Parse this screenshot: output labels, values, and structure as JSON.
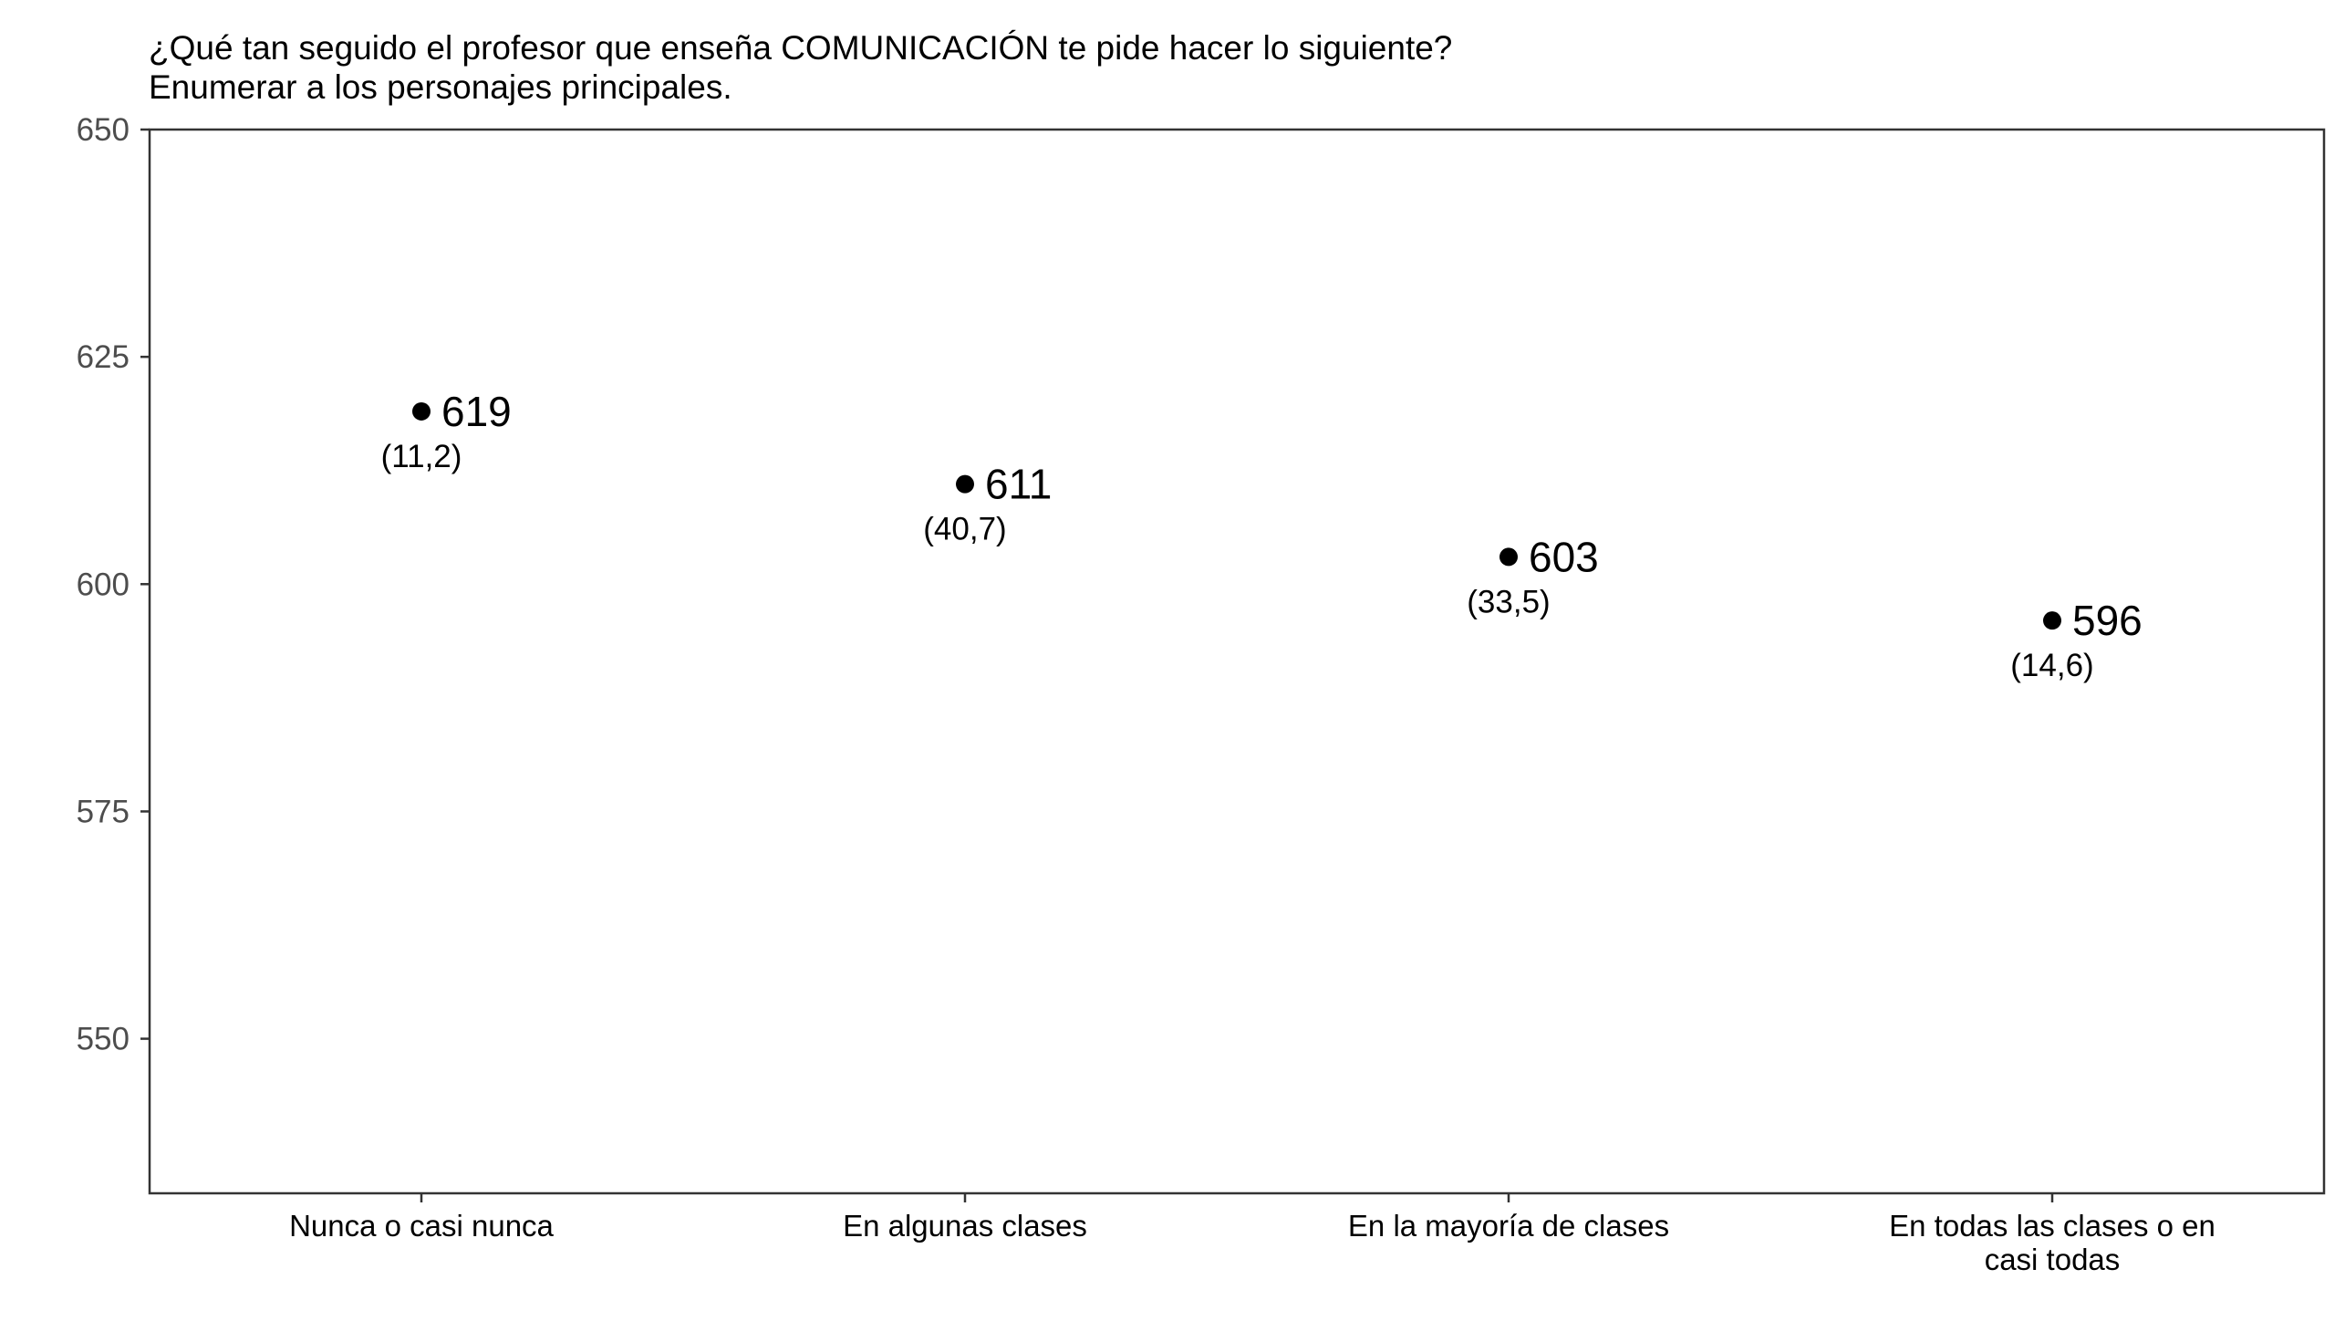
{
  "chart_data": {
    "type": "scatter",
    "title": "¿Qué tan seguido el profesor que enseña COMUNICACIÓN te pide hacer lo siguiente?",
    "subtitle": "Enumerar a los personajes principales.",
    "xlabel": "",
    "ylabel": "",
    "categories": [
      [
        "Nunca o casi nunca"
      ],
      [
        "En algunas clases"
      ],
      [
        "En la mayoría de clases"
      ],
      [
        "En todas las clases o en",
        "casi todas"
      ]
    ],
    "values": [
      619,
      611,
      603,
      596
    ],
    "value_labels": [
      "619",
      "611",
      "603",
      "596"
    ],
    "secondary_labels": [
      "(11,2)",
      "(40,7)",
      "(33,5)",
      "(14,6)"
    ],
    "ylim": [
      533,
      650
    ],
    "yticks": [
      550,
      575,
      600,
      625,
      650
    ],
    "grid": false,
    "legend": "none",
    "point_color": "#000000"
  }
}
